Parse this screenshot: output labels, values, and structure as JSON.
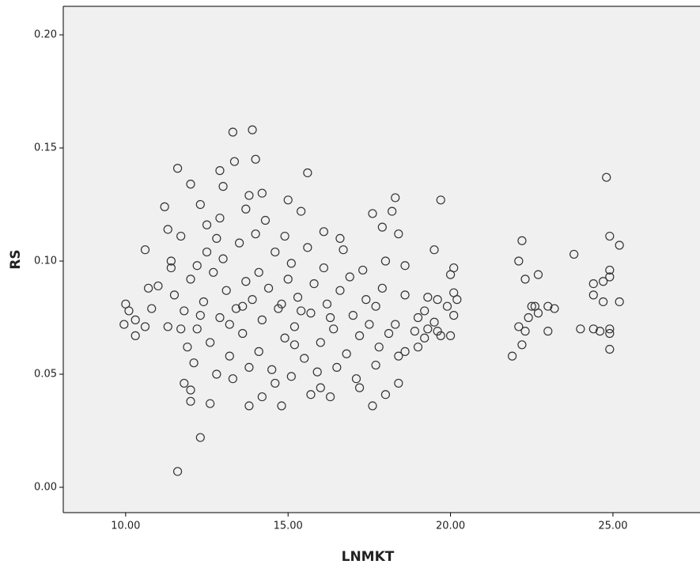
{
  "chart_data": {
    "type": "scatter",
    "x_label": "LNMKT",
    "y_label": "RS",
    "color": "#333333",
    "background": "#f0f0f0",
    "xlim": [
      8.08,
      27.68
    ],
    "ylim": [
      -0.0112,
      0.2126
    ],
    "xticks": [
      {
        "value": 10,
        "label": "10.00"
      },
      {
        "value": 15,
        "label": "15.00"
      },
      {
        "value": 20,
        "label": "20.00"
      },
      {
        "value": 25,
        "label": "25.00"
      }
    ],
    "yticks": [
      {
        "value": 0,
        "label": "0.00"
      },
      {
        "value": 0.05,
        "label": "0.05"
      },
      {
        "value": 0.1,
        "label": "0.10"
      },
      {
        "value": 0.15,
        "label": "0.15"
      },
      {
        "value": 0.2,
        "label": "0.20"
      }
    ],
    "x": [
      11.6,
      12.3,
      13.9,
      13.3,
      13.35,
      11.6,
      12.9,
      15.6,
      12.0,
      14.0,
      11.2,
      19.7,
      24.8,
      25.2,
      24.9,
      23.8,
      22.2,
      22.1,
      22.7,
      22.3,
      24.4,
      24.7,
      24.9,
      24.9,
      24.4,
      25.2,
      24.7,
      22.5,
      22.6,
      23.0,
      23.2,
      22.7,
      22.4,
      22.1,
      22.3,
      23.0,
      24.0,
      24.4,
      24.6,
      24.9,
      24.9,
      22.2,
      24.9,
      21.9,
      13.8,
      14.8,
      17.6,
      12.6,
      12.0,
      14.2,
      15.7,
      16.3,
      18.0,
      17.2,
      12.0,
      11.8,
      16.0,
      18.4,
      20.1,
      20.0,
      20.1,
      20.2,
      19.9,
      20.1,
      19.6,
      19.5,
      19.7,
      20.0,
      19.6,
      19.3,
      19.2,
      19.3,
      19.2,
      18.9,
      19.0,
      18.6,
      18.3,
      18.1,
      18.6,
      18.4,
      17.7,
      17.8,
      19.0,
      19.5,
      18.3,
      18.2,
      17.6,
      18.4,
      17.9,
      18.6,
      18.0,
      17.3,
      16.7,
      16.6,
      16.1,
      15.4,
      15.0,
      14.2,
      13.0,
      13.8,
      12.3,
      12.5,
      11.3,
      11.7,
      12.8,
      10.6,
      11.4,
      11.0,
      10.7,
      10.0,
      10.1,
      10.3,
      9.95,
      10.3,
      10.6,
      10.8,
      11.3,
      11.5,
      11.8,
      12.0,
      12.2,
      12.4,
      12.6,
      12.7,
      12.9,
      13.1,
      13.2,
      13.4,
      13.6,
      13.7,
      13.9,
      14.1,
      14.2,
      14.4,
      14.5,
      14.7,
      14.9,
      15.0,
      15.2,
      15.3,
      15.5,
      15.7,
      15.8,
      16.0,
      16.2,
      16.4,
      16.6,
      16.8,
      17.0,
      17.2,
      17.4,
      17.5,
      11.9,
      12.1,
      12.5,
      13.0,
      13.5,
      14.0,
      14.3,
      14.6,
      15.1,
      15.6,
      16.1,
      12.8,
      13.3,
      13.8,
      14.6,
      15.1,
      15.9,
      16.5,
      17.1,
      11.7,
      12.3,
      13.6,
      14.8,
      15.4,
      16.3,
      13.2,
      14.1,
      15.2,
      16.9,
      17.7,
      17.9,
      12.9,
      13.7,
      14.9,
      11.4,
      12.2
    ],
    "values": [
      0.007,
      0.022,
      0.158,
      0.157,
      0.144,
      0.141,
      0.14,
      0.139,
      0.134,
      0.145,
      0.124,
      0.127,
      0.137,
      0.107,
      0.111,
      0.103,
      0.109,
      0.1,
      0.094,
      0.092,
      0.09,
      0.091,
      0.093,
      0.096,
      0.085,
      0.082,
      0.082,
      0.08,
      0.08,
      0.08,
      0.079,
      0.077,
      0.075,
      0.071,
      0.069,
      0.069,
      0.07,
      0.07,
      0.069,
      0.07,
      0.068,
      0.063,
      0.061,
      0.058,
      0.036,
      0.036,
      0.036,
      0.037,
      0.038,
      0.04,
      0.041,
      0.04,
      0.041,
      0.044,
      0.043,
      0.046,
      0.044,
      0.046,
      0.097,
      0.094,
      0.086,
      0.083,
      0.08,
      0.076,
      0.069,
      0.073,
      0.067,
      0.067,
      0.083,
      0.084,
      0.078,
      0.07,
      0.066,
      0.069,
      0.075,
      0.085,
      0.072,
      0.068,
      0.06,
      0.058,
      0.054,
      0.062,
      0.062,
      0.105,
      0.128,
      0.122,
      0.121,
      0.112,
      0.115,
      0.098,
      0.1,
      0.096,
      0.105,
      0.11,
      0.113,
      0.122,
      0.127,
      0.13,
      0.133,
      0.129,
      0.125,
      0.116,
      0.114,
      0.111,
      0.11,
      0.105,
      0.097,
      0.089,
      0.088,
      0.081,
      0.078,
      0.074,
      0.072,
      0.067,
      0.071,
      0.079,
      0.071,
      0.085,
      0.078,
      0.092,
      0.07,
      0.082,
      0.064,
      0.095,
      0.075,
      0.087,
      0.058,
      0.079,
      0.068,
      0.091,
      0.083,
      0.06,
      0.074,
      0.088,
      0.052,
      0.079,
      0.066,
      0.092,
      0.071,
      0.084,
      0.057,
      0.077,
      0.09,
      0.064,
      0.081,
      0.07,
      0.087,
      0.059,
      0.076,
      0.067,
      0.083,
      0.072,
      0.062,
      0.055,
      0.104,
      0.101,
      0.108,
      0.112,
      0.118,
      0.104,
      0.099,
      0.106,
      0.097,
      0.05,
      0.048,
      0.053,
      0.046,
      0.049,
      0.051,
      0.053,
      0.048,
      0.07,
      0.076,
      0.08,
      0.081,
      0.078,
      0.075,
      0.072,
      0.095,
      0.063,
      0.093,
      0.08,
      0.088,
      0.119,
      0.123,
      0.111,
      0.1,
      0.098
    ]
  }
}
